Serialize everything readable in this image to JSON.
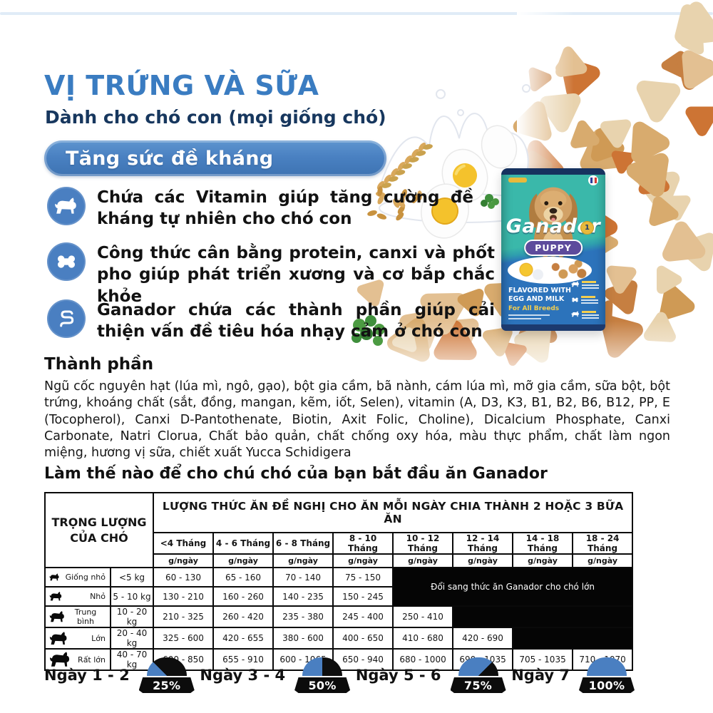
{
  "colors": {
    "title_blue": "#3a7cc1",
    "subtitle_navy": "#17375e",
    "banner_blue": "#4a81c2",
    "icon_blue": "#4a7fc1",
    "bowl_blue": "#4a7fc1",
    "table_black": "#050505"
  },
  "header": {
    "title": "VỊ TRỨNG VÀ SỮA",
    "subtitle": "Dành cho chó con (mọi giống chó)",
    "banner": "Tăng sức đề kháng"
  },
  "benefits": [
    {
      "icon": "dog-icon",
      "text": "Chứa các Vitamin giúp tăng cường đề kháng tự nhiên cho chó con"
    },
    {
      "icon": "bone-icon",
      "text": "Công thức cân bằng protein, canxi và phốt pho giúp phát triển xương và cơ bắp chắc khỏe"
    },
    {
      "icon": "intestine-icon",
      "text": "Ganador chứa các thành phần giúp cải thiện vấn đề tiêu hóa nhạy cảm ở chó con"
    }
  ],
  "ingredients": {
    "heading": "Thành phần",
    "body": "Ngũ cốc nguyên hạt (lúa mì, ngô, gạo), bột gia cầm, bã nành, cám lúa mì, mỡ gia cầm, sữa bột, bột trứng, khoáng chất (sắt, đồng, mangan, kẽm, iốt, Selen), vitamin (A, D3, K3, B1, B2, B6, B12, PP, E (Tocopherol), Canxi D-Pantothenate, Biotin, Axit Folic, Choline), Dicalcium Phosphate, Canxi Carbonate, Natri Clorua, Chất bảo quản, chất chống oxy hóa, màu thực phẩm, chất làm ngon miệng, hương vị sữa, chiết xuất Yucca Schidigera"
  },
  "feeding": {
    "heading": "Làm thế nào để cho chú chó của bạn bắt đầu ăn Ganador",
    "table": {
      "corner_header": "TRỌNG LƯỢNG CỦA CHÓ",
      "main_header": "LƯỢNG THỨC ĂN ĐỀ NGHỊ CHO ĂN MỖI NGÀY CHIA THÀNH 2 HOẶC 3 BỮA ĂN",
      "unit": "g/ngày",
      "age_columns": [
        "<4 Tháng",
        "4 - 6 Tháng",
        "6 - 8 Tháng",
        "8 - 10 Tháng",
        "10 - 12 Tháng",
        "12 - 14 Tháng",
        "14 - 18 Tháng",
        "18 - 24 Tháng"
      ],
      "switch_note": "Đổi sang thức ăn Ganador cho chó lớn",
      "rows": [
        {
          "size": "Giống nhỏ",
          "weight": "<5 kg",
          "values": [
            "60 - 130",
            "65 - 160",
            "70 - 140",
            "75 - 150"
          ]
        },
        {
          "size": "Nhỏ",
          "weight": "5 - 10 kg",
          "values": [
            "130 - 210",
            "160 - 260",
            "140 - 235",
            "150 - 245"
          ]
        },
        {
          "size": "Trung bình",
          "weight": "10 - 20 kg",
          "values": [
            "210 - 325",
            "260 - 420",
            "235 - 380",
            "245 - 400",
            "250 - 410"
          ]
        },
        {
          "size": "Lớn",
          "weight": "20 - 40 kg",
          "values": [
            "325 - 600",
            "420 - 655",
            "380 - 600",
            "400 - 650",
            "410 - 680",
            "420 - 690"
          ]
        },
        {
          "size": "Rất lớn",
          "weight": "40 - 70 kg",
          "values": [
            "600 - 850",
            "655 - 910",
            "600 - 1065",
            "650 - 940",
            "680 - 1000",
            "690 - 1035",
            "705 - 1035",
            "710 - 1070"
          ]
        }
      ]
    }
  },
  "transition": {
    "bowls": [
      {
        "label": "Ngày 1 - 2",
        "percent_label": "25%",
        "percent": 25
      },
      {
        "label": "Ngày 3 - 4",
        "percent_label": "50%",
        "percent": 50
      },
      {
        "label": "Ngày 5 - 6",
        "percent_label": "75%",
        "percent": 75
      },
      {
        "label": "Ngày 7",
        "percent_label": "100%",
        "percent": 100
      }
    ]
  },
  "product_bag": {
    "brand": "Ganador",
    "line": "PUPPY",
    "flavor": "FLAVORED WITH EGG AND MILK",
    "breeds": "For All Breeds",
    "badge": "1"
  }
}
